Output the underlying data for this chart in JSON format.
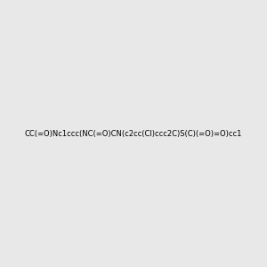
{
  "smiles": "CC(=O)Nc1ccc(NC(=O)CN(c2cc(Cl)ccc2C)S(C)(=O)=O)cc1",
  "background_color": "#e8e8e8",
  "figsize": [
    3.0,
    3.0
  ],
  "dpi": 100,
  "title": ""
}
